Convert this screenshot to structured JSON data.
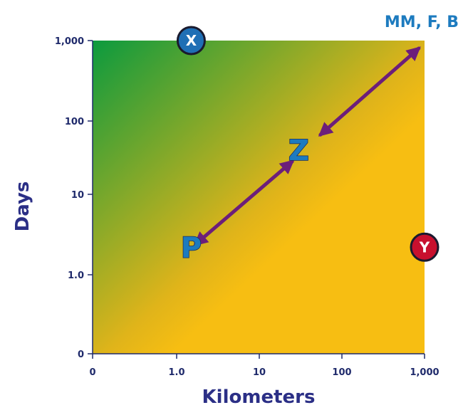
{
  "chart_data": {
    "type": "scatter",
    "x_axis": {
      "label": "Kilometers",
      "scale": "log",
      "ticks": [
        {
          "value": 0,
          "label": "0"
        },
        {
          "value": 1,
          "label": "1.0"
        },
        {
          "value": 10,
          "label": "10"
        },
        {
          "value": 100,
          "label": "100"
        },
        {
          "value": 1000,
          "label": "1,000"
        }
      ]
    },
    "y_axis": {
      "label": "Days",
      "scale": "log",
      "ticks": [
        {
          "value": 0,
          "label": "0"
        },
        {
          "value": 1,
          "label": "1.0"
        },
        {
          "value": 10,
          "label": "10"
        },
        {
          "value": 100,
          "label": "100"
        },
        {
          "value": 1000,
          "label": "1,000"
        }
      ]
    },
    "corner_label": "MM, F, B",
    "background": {
      "top_left_color": "#0b9a3e",
      "bottom_right_color": "#f7be12"
    },
    "points": [
      {
        "label": "P",
        "style": "letter",
        "x": 1.5,
        "y": 2.2,
        "color": "#1d7bbf"
      },
      {
        "label": "Z",
        "style": "letter",
        "x": 30,
        "y": 40,
        "color": "#1d7bbf"
      },
      {
        "label": "X",
        "style": "badge",
        "x": 1.5,
        "y": 1000,
        "color": "#1f6fb5"
      },
      {
        "label": "Y",
        "style": "badge",
        "x": 1000,
        "y": 2.2,
        "color": "#c8102e"
      }
    ],
    "arrows": [
      {
        "from": {
          "x": 1.7,
          "y": 2.4
        },
        "to": {
          "x": 25,
          "y": 28
        },
        "color": "#6c1e7a"
      },
      {
        "from": {
          "x": 55,
          "y": 65
        },
        "to": {
          "x": 850,
          "y": 800
        },
        "color": "#6c1e7a"
      }
    ]
  }
}
